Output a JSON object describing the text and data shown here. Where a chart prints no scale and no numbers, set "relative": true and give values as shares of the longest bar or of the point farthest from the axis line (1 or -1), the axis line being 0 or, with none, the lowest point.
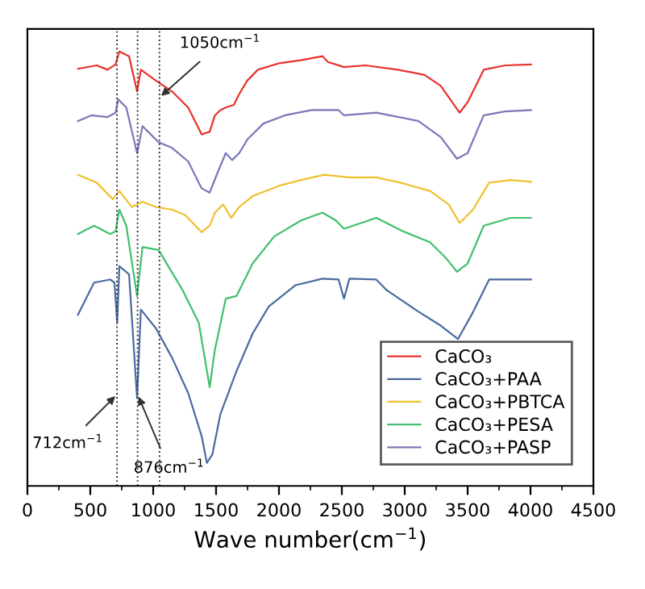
{
  "chart_data": {
    "type": "line",
    "relative": true,
    "xlabel": "Wave number(cm$^{−1}$)",
    "xlim": [
      0,
      4500
    ],
    "xticks": [
      0,
      500,
      1000,
      1500,
      2000,
      2500,
      3000,
      3500,
      4000,
      4500
    ],
    "tick_labels": "x",
    "grid": false,
    "legend": "bottom right",
    "marker": "none",
    "line_style": "solid",
    "series": [
      {
        "name": "CaCO₃",
        "color": "#e8322c",
        "x": [
          402,
          551,
          637,
          701,
          731,
          808,
          872,
          902,
          1021,
          1150,
          1278,
          1385,
          1449,
          1491,
          1534,
          1577,
          1641,
          1684,
          1748,
          1833,
          2004,
          2175,
          2346,
          2389,
          2517,
          2688,
          2944,
          3158,
          3286,
          3436,
          3500,
          3628,
          3799,
          4004
        ],
        "values": [
          0.96,
          0.968,
          0.958,
          0.97,
          1.0,
          0.989,
          0.908,
          0.958,
          0.933,
          0.908,
          0.871,
          0.809,
          0.815,
          0.853,
          0.865,
          0.871,
          0.877,
          0.902,
          0.933,
          0.958,
          0.973,
          0.98,
          0.989,
          0.976,
          0.964,
          0.968,
          0.958,
          0.946,
          0.921,
          0.859,
          0.883,
          0.958,
          0.968,
          0.97
        ]
      },
      {
        "name": "CaCO₃+PAA",
        "color": "#4a6a9e",
        "x": [
          402,
          530,
          658,
          692,
          714,
          731,
          808,
          872,
          902,
          1021,
          1150,
          1278,
          1385,
          1427,
          1470,
          1534,
          1662,
          1791,
          1919,
          2132,
          2346,
          2474,
          2517,
          2560,
          2774,
          2859,
          2987,
          3115,
          3286,
          3423,
          3543,
          3671,
          4004
        ],
        "values": [
          0.394,
          0.468,
          0.475,
          0.468,
          0.375,
          0.506,
          0.487,
          0.202,
          0.406,
          0.363,
          0.295,
          0.214,
          0.115,
          0.053,
          0.072,
          0.165,
          0.264,
          0.351,
          0.413,
          0.462,
          0.477,
          0.475,
          0.431,
          0.477,
          0.475,
          0.45,
          0.425,
          0.4,
          0.369,
          0.338,
          0.4,
          0.475,
          0.475
        ]
      },
      {
        "name": "CaCO₃+PBTCA",
        "color": "#f0c030",
        "x": [
          402,
          551,
          679,
          731,
          829,
          915,
          1021,
          1150,
          1256,
          1385,
          1449,
          1491,
          1556,
          1620,
          1684,
          1791,
          2004,
          2175,
          2359,
          2560,
          2774,
          2966,
          3201,
          3350,
          3436,
          3543,
          3671,
          3842,
          4004
        ],
        "values": [
          0.716,
          0.698,
          0.66,
          0.679,
          0.642,
          0.654,
          0.642,
          0.636,
          0.623,
          0.584,
          0.599,
          0.629,
          0.648,
          0.617,
          0.642,
          0.667,
          0.691,
          0.704,
          0.716,
          0.71,
          0.71,
          0.698,
          0.679,
          0.648,
          0.605,
          0.636,
          0.698,
          0.704,
          0.7
        ]
      },
      {
        "name": "CaCO₃+PESA",
        "color": "#40c070",
        "x": [
          402,
          530,
          658,
          701,
          731,
          786,
          872,
          915,
          1043,
          1235,
          1363,
          1449,
          1491,
          1577,
          1662,
          1791,
          1962,
          2175,
          2346,
          2453,
          2517,
          2774,
          2987,
          3201,
          3329,
          3415,
          3500,
          3628,
          3842,
          4004
        ],
        "values": [
          0.58,
          0.599,
          0.58,
          0.586,
          0.636,
          0.599,
          0.437,
          0.55,
          0.543,
          0.45,
          0.375,
          0.227,
          0.314,
          0.431,
          0.437,
          0.512,
          0.574,
          0.611,
          0.629,
          0.611,
          0.592,
          0.617,
          0.586,
          0.561,
          0.524,
          0.493,
          0.512,
          0.599,
          0.617,
          0.617
        ]
      },
      {
        "name": "CaCO₃+PASP",
        "color": "#7a78b8",
        "x": [
          402,
          509,
          637,
          701,
          722,
          786,
          872,
          915,
          1043,
          1150,
          1278,
          1385,
          1449,
          1513,
          1577,
          1628,
          1684,
          1748,
          1876,
          2047,
          2261,
          2474,
          2517,
          2774,
          3107,
          3286,
          3415,
          3500,
          3628,
          3799,
          4004
        ],
        "values": [
          0.84,
          0.853,
          0.849,
          0.859,
          0.89,
          0.871,
          0.766,
          0.828,
          0.791,
          0.778,
          0.747,
          0.685,
          0.675,
          0.722,
          0.766,
          0.75,
          0.766,
          0.797,
          0.834,
          0.853,
          0.865,
          0.865,
          0.853,
          0.859,
          0.84,
          0.803,
          0.753,
          0.766,
          0.853,
          0.862,
          0.865
        ]
      }
    ],
    "ref_lines": [
      {
        "axis": "x",
        "value": 712,
        "label": "712cm$^{−1}$",
        "color": "#333333",
        "line_style": "dotted"
      },
      {
        "axis": "x",
        "value": 876,
        "label": "876cm$^{−1}$",
        "color": "#333333",
        "line_style": "dotted"
      },
      {
        "axis": "x",
        "value": 1050,
        "label": "1050cm$^{−1}$",
        "color": "#333333",
        "line_style": "dotted"
      }
    ]
  }
}
